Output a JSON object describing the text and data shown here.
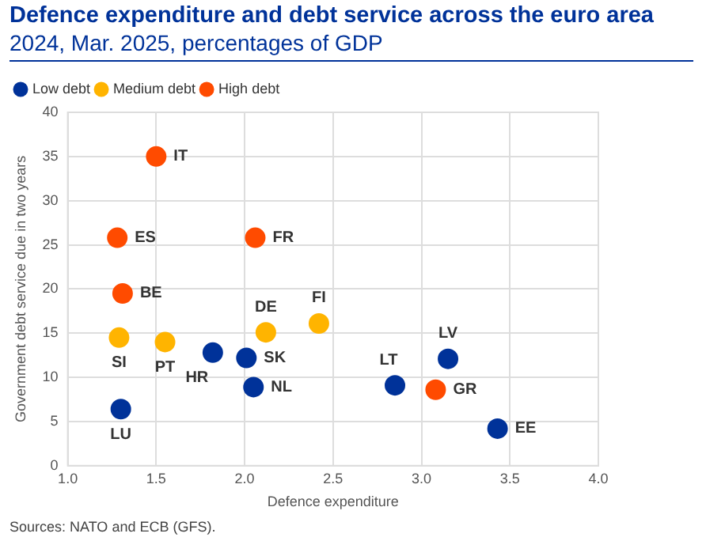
{
  "chart_data": {
    "type": "scatter",
    "title": "Defence expenditure and debt service across the euro area",
    "subtitle": "2024, Mar. 2025, percentages of GDP",
    "xlabel": "Defence expenditure",
    "ylabel": "Government debt service due in two years",
    "series": [
      {
        "name": "Low debt",
        "color": "#003299",
        "x": [
          1.82,
          2.01,
          2.05,
          1.3,
          2.85,
          3.15,
          3.43
        ],
        "values": [
          12.8,
          12.2,
          8.9,
          6.4,
          9.1,
          12.1,
          4.2
        ]
      },
      {
        "name": "Medium debt",
        "color": "#ffb400",
        "x": [
          1.29,
          1.55,
          2.12,
          2.42
        ],
        "values": [
          14.5,
          14.0,
          15.1,
          16.1
        ]
      },
      {
        "name": "High debt",
        "color": "#ff4b00",
        "x": [
          1.5,
          1.28,
          2.06,
          1.31,
          3.08
        ],
        "values": [
          35.0,
          25.8,
          25.8,
          19.5,
          8.6
        ]
      }
    ],
    "xlim": [
      1.0,
      4.0
    ],
    "xticks": [
      {
        "value": 1,
        "label": "1.0"
      },
      1.5,
      {
        "value": 2,
        "label": "2.0"
      },
      2.5,
      {
        "value": 3,
        "label": "3.0"
      },
      3.5,
      {
        "value": 4,
        "label": "4.0"
      }
    ],
    "ylim": [
      0,
      40
    ],
    "yticks": [
      0,
      5,
      10,
      15,
      20,
      25,
      30,
      35,
      40
    ],
    "grid": true,
    "legend": "top left",
    "marker": "circle",
    "annotations": [
      {
        "text": "IT",
        "x": 1.5,
        "y": 35.0
      },
      {
        "text": "ES",
        "x": 1.28,
        "y": 25.8
      },
      {
        "text": "FR",
        "x": 2.06,
        "y": 25.8
      },
      {
        "text": "BE",
        "x": 1.31,
        "y": 19.5
      },
      {
        "text": "SI",
        "x": 1.29,
        "y": 14.5
      },
      {
        "text": "PT",
        "x": 1.55,
        "y": 14.0
      },
      {
        "text": "DE",
        "x": 2.12,
        "y": 15.1
      },
      {
        "text": "FI",
        "x": 2.42,
        "y": 16.1
      },
      {
        "text": "HR",
        "x": 1.82,
        "y": 12.8
      },
      {
        "text": "SK",
        "x": 2.01,
        "y": 12.2
      },
      {
        "text": "NL",
        "x": 2.05,
        "y": 8.9
      },
      {
        "text": "LU",
        "x": 1.3,
        "y": 6.4
      },
      {
        "text": "LT",
        "x": 2.85,
        "y": 9.1
      },
      {
        "text": "LV",
        "x": 3.15,
        "y": 12.1
      },
      {
        "text": "GR",
        "x": 3.08,
        "y": 8.6
      },
      {
        "text": "EE",
        "x": 3.43,
        "y": 4.2
      },
      "Sources: NATO and ECB (GFS)."
    ]
  }
}
